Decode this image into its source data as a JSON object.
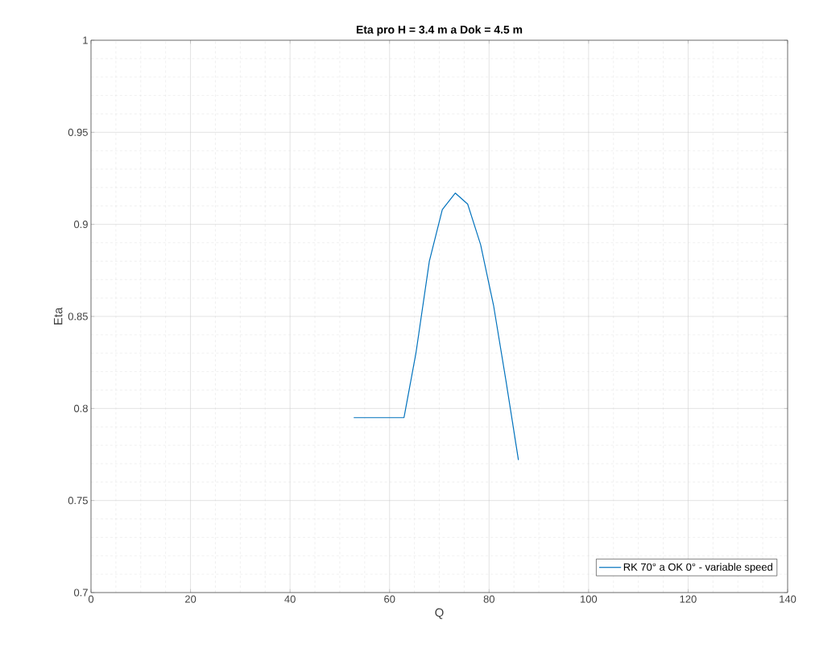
{
  "chart_data": {
    "type": "line",
    "title": "Eta pro H = 3.4 m a Dok = 4.5 m",
    "xlabel": "Q",
    "ylabel": "Eta",
    "x": [
      52.8,
      62.9,
      65.3,
      68.0,
      70.6,
      73.2,
      75.7,
      78.3,
      80.9,
      83.4,
      85.9
    ],
    "series": [
      {
        "name": "RK 70° a OK 0° - variable speed",
        "color": "#0072bd",
        "values": [
          0.795,
          0.795,
          0.83,
          0.88,
          0.908,
          0.917,
          0.911,
          0.889,
          0.856,
          0.815,
          0.772
        ]
      }
    ],
    "xlim": [
      0,
      140
    ],
    "xticks": [
      0,
      20,
      40,
      60,
      80,
      100,
      120,
      140
    ],
    "ylim": [
      0.7,
      1
    ],
    "yticks": [
      0.7,
      0.75,
      0.8,
      0.85,
      0.9,
      0.95,
      1
    ],
    "grid": true,
    "legend": "bottom right",
    "marker": "none",
    "line_style": "solid"
  }
}
